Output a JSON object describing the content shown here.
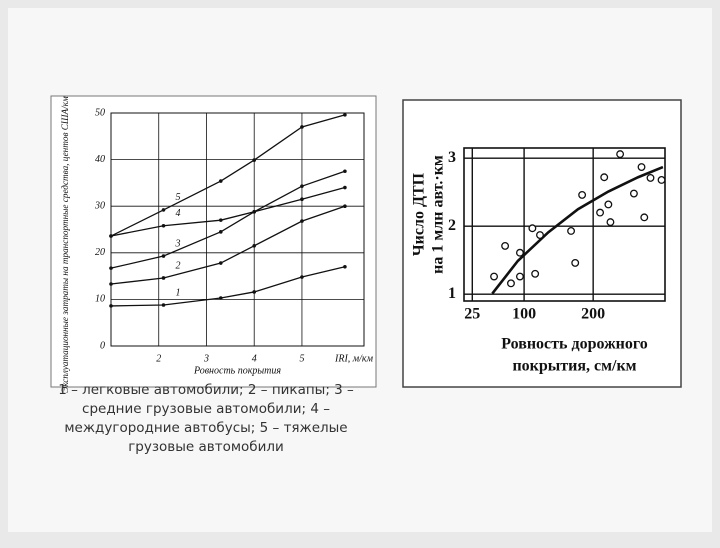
{
  "chart_data": [
    {
      "type": "line",
      "ylabel": "Эксплуатационные затраты на транспортные средства, центов США/км",
      "xlabel": "Ровность покрытия",
      "xlabel_unit": "IRI, м/км",
      "x": [
        1,
        2.1,
        3.3,
        4,
        5,
        5.9
      ],
      "series": [
        {
          "name": "1",
          "color": "#111111",
          "values": [
            8.6,
            8.8,
            10.3,
            11.6,
            14.8,
            17
          ]
        },
        {
          "name": "2",
          "color": "#111111",
          "values": [
            13.3,
            14.6,
            17.8,
            21.5,
            26.8,
            30
          ]
        },
        {
          "name": "3",
          "color": "#111111",
          "values": [
            16.7,
            19.3,
            24.5,
            28.8,
            34.3,
            37.5
          ]
        },
        {
          "name": "4",
          "color": "#111111",
          "values": [
            23.6,
            25.8,
            27,
            28.8,
            31.5,
            34
          ]
        },
        {
          "name": "5",
          "color": "#111111",
          "values": [
            23.6,
            29.2,
            35.4,
            39.9,
            47,
            49.6
          ]
        }
      ],
      "xlim": [
        1,
        6.3
      ],
      "xticks": [
        2,
        3,
        4,
        5
      ],
      "ylim": [
        0,
        50
      ],
      "yticks": [
        0,
        10,
        20,
        30,
        40,
        50
      ],
      "grid": true
    },
    {
      "type": "scatter",
      "ylabel": [
        "Число ДТП",
        "на 1 млн авт.·км"
      ],
      "xlabel": [
        "Ровность дорожного",
        "покрытия, см/км"
      ],
      "x": [
        56.5,
        72.5,
        81,
        94,
        94,
        112,
        116,
        123,
        168,
        174,
        184,
        210,
        216,
        222,
        225,
        239,
        259,
        270,
        274,
        283,
        299
      ],
      "values": [
        1.26,
        1.71,
        1.16,
        1.61,
        1.26,
        1.97,
        1.3,
        1.87,
        1.93,
        1.46,
        2.46,
        2.2,
        2.72,
        2.32,
        2.06,
        3.06,
        2.48,
        2.87,
        2.13,
        2.71,
        2.68
      ],
      "trend": {
        "x": [
          54,
          91,
          135,
          178,
          222,
          265,
          301
        ],
        "values": [
          1.01,
          1.49,
          1.91,
          2.25,
          2.51,
          2.72,
          2.87
        ]
      },
      "xlim": [
        13,
        304
      ],
      "xticks": [
        25,
        100,
        200
      ],
      "ylim": [
        0.9,
        3.15
      ],
      "yticks": [
        1,
        2,
        3
      ],
      "grid": true,
      "color": "#111111"
    }
  ],
  "caption": "1 – легковые автомобили; 2 – пикапы; 3 – средние грузовые автомобили; 4 – междугородние автобусы; 5 – тяжелые грузовые автомобили"
}
